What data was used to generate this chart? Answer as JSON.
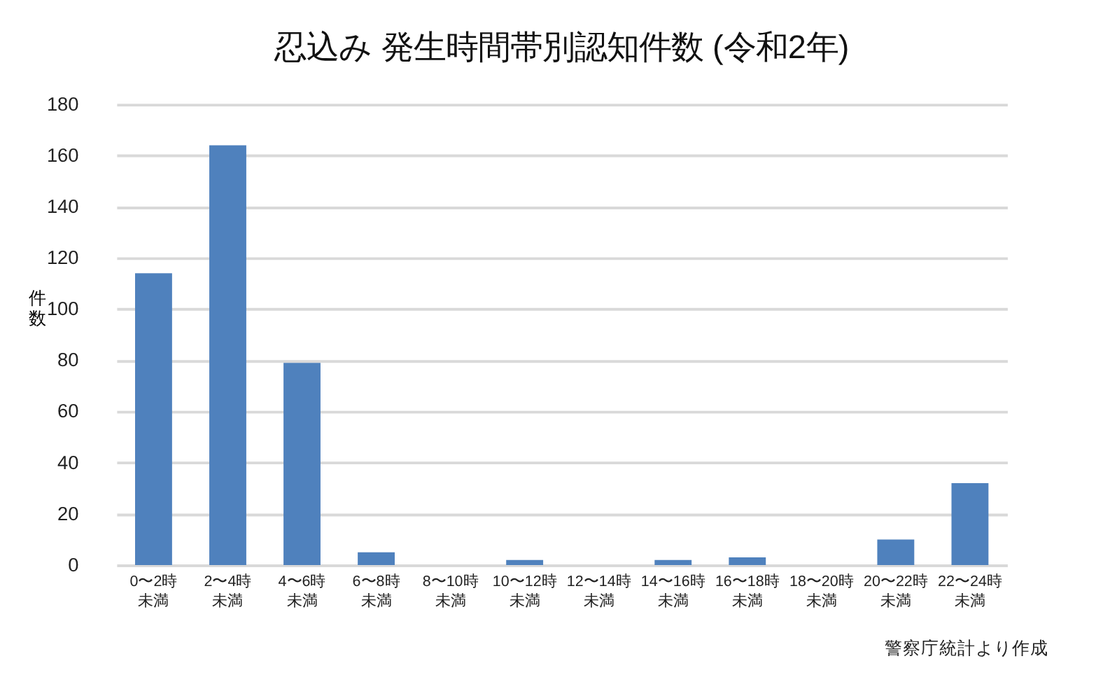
{
  "chart_data": {
    "type": "bar",
    "title": "忍込み 発生時間帯別認知件数 (令和2年)",
    "ylabel": "件数",
    "categories": [
      "0〜2時未満",
      "2〜4時未満",
      "4〜6時未満",
      "6〜8時未満",
      "8〜10時未満",
      "10〜12時未満",
      "12〜14時未満",
      "14〜16時未満",
      "16〜18時未満",
      "18〜20時未満",
      "20〜22時未満",
      "22〜24時未満"
    ],
    "values": [
      114,
      164,
      79,
      5,
      0,
      2,
      0,
      2,
      3,
      0,
      10,
      32
    ],
    "color": "#4f81bd",
    "ylim": [
      0,
      180
    ],
    "yticks": [
      0,
      20,
      40,
      60,
      80,
      100,
      120,
      140,
      160,
      180
    ],
    "grid": "y",
    "annotations": [
      "警察庁統計より作成"
    ]
  }
}
